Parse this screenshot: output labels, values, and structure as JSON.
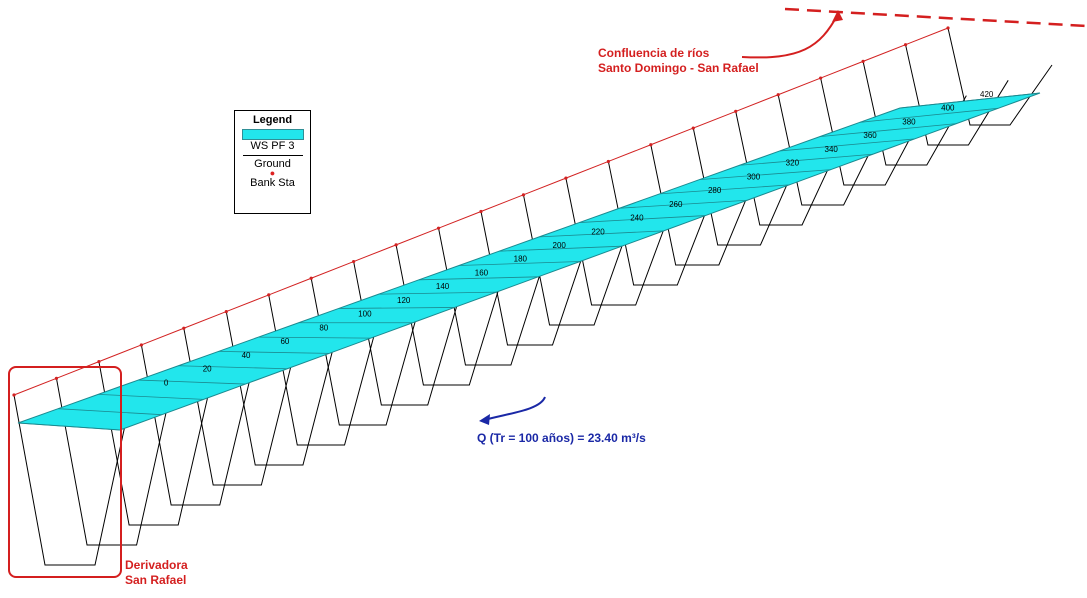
{
  "legend": {
    "title": "Legend",
    "items": [
      {
        "label": "WS PF 3",
        "kind": "fill",
        "color": "#22e6ec"
      },
      {
        "label": "Ground",
        "kind": "line",
        "color": "#000000"
      },
      {
        "label": "Bank Sta",
        "kind": "dot",
        "color": "#d22222"
      }
    ]
  },
  "annotations": {
    "confluence_line1": "Confluencia de ríos",
    "confluence_line2": "Santo Domingo - San Rafael",
    "derivadora_line1": "Derivadora",
    "derivadora_line2": "San Rafael",
    "flow": "Q (Tr = 100 años) = 23.40 m³/s"
  },
  "stations": [
    "0",
    "20",
    "40",
    "60",
    "80",
    "100",
    "120",
    "140",
    "160",
    "180",
    "200",
    "220",
    "240",
    "260",
    "280",
    "300",
    "320",
    "340",
    "360",
    "380",
    "400",
    "420"
  ],
  "colors": {
    "water": "#22e6ec",
    "bank": "#d22222",
    "ground": "#000000",
    "annotation_red": "#d41f1f",
    "annotation_blue": "#1a28a6"
  }
}
